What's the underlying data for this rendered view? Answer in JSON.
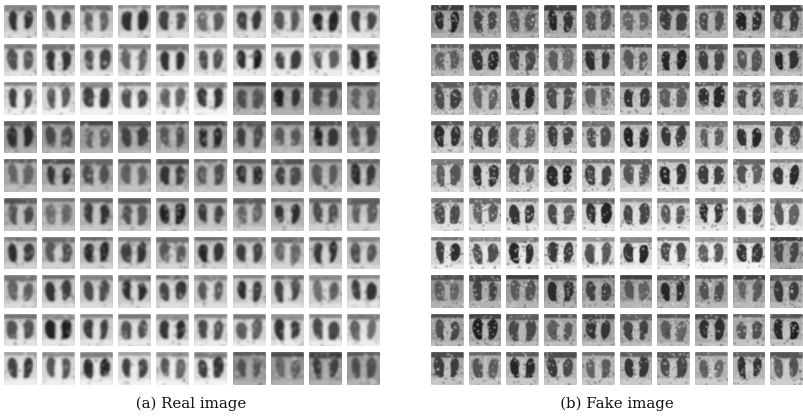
{
  "figure": {
    "panels": [
      {
        "id": "a",
        "caption": "(a)  Real image",
        "rows": 10,
        "cols": 10,
        "style": "real"
      },
      {
        "id": "b",
        "caption": "(b)  Fake image",
        "rows": 10,
        "cols": 10,
        "style": "fake"
      }
    ],
    "image_content": "chest-xray-thumbnail"
  }
}
